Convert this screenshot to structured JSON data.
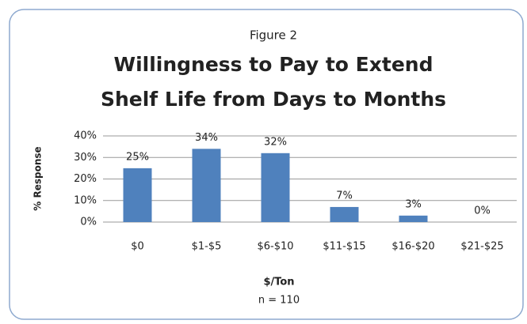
{
  "chart_data": {
    "type": "bar",
    "subtitle": "Figure 2",
    "title": [
      "Willingness to Pay to Extend",
      "Shelf Life from Days to Months"
    ],
    "categories": [
      "$0",
      "$1-$5",
      "$6-$10",
      "$11-$15",
      "$16-$20",
      "$21-$25"
    ],
    "values": [
      25,
      34,
      32,
      7,
      3,
      0
    ],
    "value_labels": [
      "25%",
      "34%",
      "32%",
      "7%",
      "3%",
      "0%"
    ],
    "color": "#4f81bd",
    "ylim": [
      0,
      40
    ],
    "yticks": [
      {
        "value": 0,
        "label": "0%"
      },
      {
        "value": 10,
        "label": "10%"
      },
      {
        "value": 20,
        "label": "20%"
      },
      {
        "value": 30,
        "label": "30%"
      },
      {
        "value": 40,
        "label": "40%"
      }
    ],
    "grid": true,
    "xlabel": "$/Ton",
    "ylabel": "% Response",
    "note": "n = 110"
  }
}
